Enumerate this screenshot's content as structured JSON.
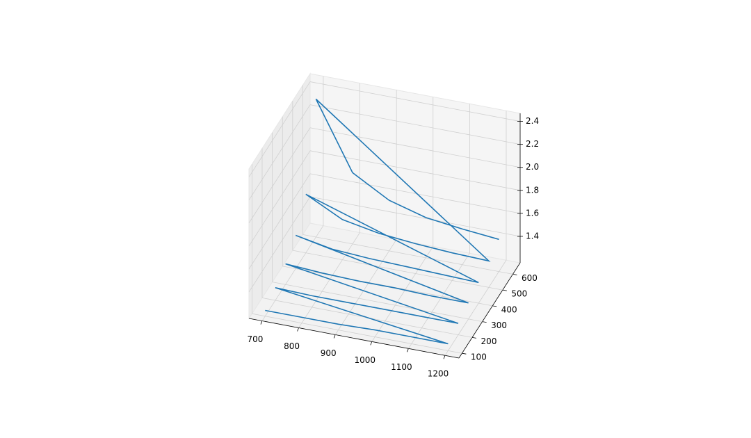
{
  "chart_data": {
    "type": "line3d",
    "series": [
      {
        "color": "#1f77b4",
        "x": [
          700,
          800,
          900,
          1000,
          1100,
          1200,
          700,
          800,
          900,
          1000,
          1100,
          1200,
          700,
          800,
          900,
          1000,
          1100,
          1200,
          700,
          800,
          900,
          1000,
          1100,
          1200,
          700,
          800,
          900,
          1000,
          1100,
          1200,
          700,
          800,
          900,
          1000,
          1100,
          1200
        ],
        "y": [
          100,
          100,
          100,
          100,
          100,
          100,
          200,
          200,
          200,
          200,
          200,
          200,
          300,
          300,
          300,
          300,
          300,
          300,
          400,
          400,
          400,
          400,
          400,
          400,
          500,
          500,
          500,
          500,
          500,
          500,
          600,
          600,
          600,
          600,
          600,
          600
        ],
        "z": [
          1.22,
          1.22,
          1.22,
          1.23,
          1.23,
          1.23,
          1.28,
          1.27,
          1.27,
          1.27,
          1.27,
          1.27,
          1.35,
          1.33,
          1.32,
          1.32,
          1.31,
          1.31,
          1.46,
          1.4,
          1.38,
          1.37,
          1.36,
          1.35,
          1.68,
          1.52,
          1.46,
          1.43,
          1.41,
          1.4,
          2.37,
          1.79,
          1.61,
          1.52,
          1.48,
          1.45
        ]
      }
    ],
    "xlim": [
      664,
      1238
    ],
    "ylim": [
      70,
      672
    ],
    "zlim": [
      1.17,
      2.47
    ],
    "xticks": [
      700,
      800,
      900,
      1000,
      1100,
      1200
    ],
    "yticks": [
      100,
      200,
      300,
      400,
      500,
      600
    ],
    "zticks": [
      1.4,
      1.6,
      1.8,
      {
        "value": 2,
        "label": "2.0"
      },
      2.2,
      2.4
    ],
    "grid": true
  }
}
